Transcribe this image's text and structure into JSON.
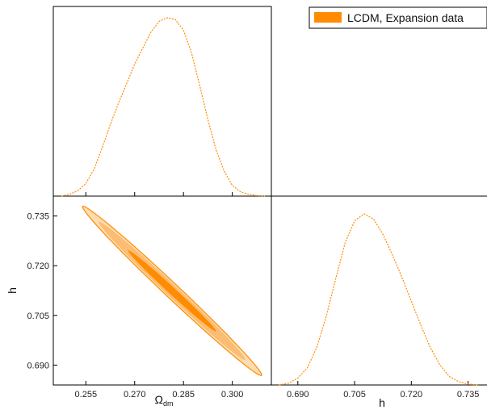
{
  "chart_data": {
    "type": "triangle",
    "legend": {
      "label": "LCDM, Expansion data",
      "color": "#ff8c00",
      "position": "top-right"
    },
    "colors": {
      "line": "#ff8c00",
      "outer_fill": "#fddcb0",
      "mid_fill": "#fbbd74",
      "inner_fill": "#ff8c00"
    },
    "panels": [
      {
        "name": "posterior-omega-dm",
        "type": "line",
        "xlim": [
          0.245,
          0.312
        ],
        "x": [
          0.2475,
          0.25,
          0.2525,
          0.255,
          0.2575,
          0.26,
          0.2625,
          0.265,
          0.2675,
          0.27,
          0.2725,
          0.275,
          0.2775,
          0.28,
          0.2825,
          0.285,
          0.2875,
          0.29,
          0.2925,
          0.295,
          0.2975,
          0.3,
          0.3025,
          0.305,
          0.3075,
          0.31
        ],
        "y": [
          0.0,
          0.01,
          0.03,
          0.07,
          0.15,
          0.27,
          0.4,
          0.52,
          0.63,
          0.74,
          0.83,
          0.92,
          0.98,
          1.0,
          0.99,
          0.93,
          0.8,
          0.62,
          0.43,
          0.26,
          0.14,
          0.06,
          0.025,
          0.01,
          0.003,
          0.0
        ]
      },
      {
        "name": "contour-omega-dm-h",
        "type": "contour",
        "xlim": [
          0.245,
          0.312
        ],
        "ylim": [
          0.684,
          0.741
        ],
        "xlabel": "Ω",
        "xlabel_sub": "dm",
        "ylabel": "h",
        "xticks": [
          0.255,
          0.27,
          0.285,
          0.3
        ],
        "xtick_labels": [
          "0.255",
          "0.270",
          "0.285",
          "0.300"
        ],
        "yticks": [
          0.69,
          0.705,
          0.72,
          0.735
        ],
        "ytick_labels": [
          "0.690",
          "0.705",
          "0.720",
          "0.735"
        ],
        "contours": [
          {
            "level": "outer",
            "center": [
              0.2815,
              0.7124
            ],
            "half_major": [
              0.0275,
              -0.0255
            ],
            "half_minor": [
              0.0014,
              0.0017
            ]
          },
          {
            "level": "mid",
            "center": [
              0.2815,
              0.7124
            ],
            "half_major": [
              0.0225,
              -0.0208
            ],
            "half_minor": [
              0.0011,
              0.0014
            ]
          },
          {
            "level": "inner",
            "center": [
              0.2815,
              0.7124
            ],
            "half_major": [
              0.0135,
              -0.0122
            ],
            "half_minor": [
              0.0006,
              0.0009
            ]
          }
        ]
      },
      {
        "name": "posterior-h",
        "type": "line",
        "xlim": [
          0.683,
          0.74
        ],
        "xlabel": "h",
        "xticks": [
          0.69,
          0.705,
          0.72,
          0.735
        ],
        "xtick_labels": [
          "0.690",
          "0.705",
          "0.720",
          "0.735"
        ],
        "x": [
          0.685,
          0.6875,
          0.69,
          0.6925,
          0.695,
          0.6975,
          0.7,
          0.7025,
          0.705,
          0.7075,
          0.71,
          0.7125,
          0.715,
          0.7175,
          0.72,
          0.7225,
          0.725,
          0.7275,
          0.73,
          0.7325,
          0.735,
          0.7375
        ],
        "y": [
          0.0,
          0.01,
          0.04,
          0.1,
          0.22,
          0.4,
          0.62,
          0.83,
          0.96,
          1.0,
          0.97,
          0.88,
          0.76,
          0.63,
          0.49,
          0.35,
          0.22,
          0.12,
          0.05,
          0.02,
          0.005,
          0.0
        ]
      }
    ]
  }
}
